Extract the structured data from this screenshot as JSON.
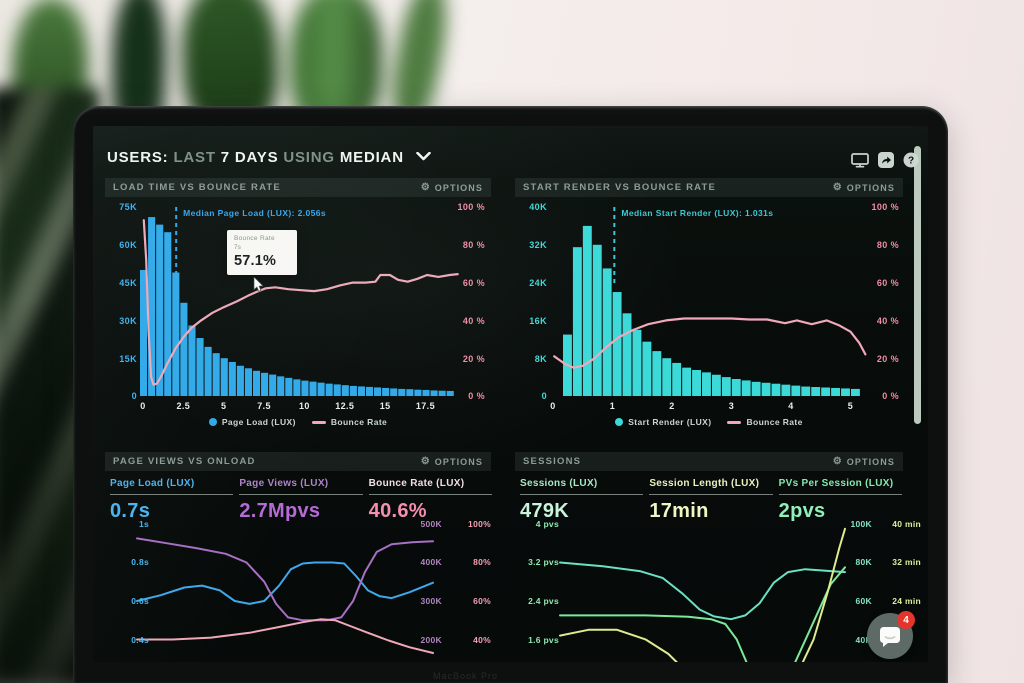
{
  "header": {
    "users": "USERS:",
    "last": "LAST",
    "days": "7 DAYS",
    "using": "USING",
    "median": "MEDIAN"
  },
  "misc": {
    "bezel_label": "MacBook Pro",
    "chat_badge": "4"
  },
  "panels": [
    {
      "title": "LOAD TIME VS BOUNCE RATE",
      "options_label": "OPTIONS",
      "median_label": "Median Page Load (LUX): 2.056s",
      "tooltip": {
        "title": "Bounce Rate",
        "subtitle": "7s",
        "value": "57.1%"
      },
      "legend": [
        {
          "label": "Page Load (LUX)",
          "marker": "dot",
          "color": "#2fa9ea"
        },
        {
          "label": "Bounce Rate",
          "marker": "line",
          "color": "#f0a8ba"
        }
      ],
      "axes": {
        "left": [
          "75K",
          "60K",
          "45K",
          "30K",
          "15K",
          "0"
        ],
        "right": [
          "100 %",
          "80 %",
          "60 %",
          "40 %",
          "20 %",
          "0 %"
        ],
        "x": [
          "0",
          "2.5",
          "5",
          "7.5",
          "10",
          "12.5",
          "15",
          "17.5"
        ]
      },
      "colors": {
        "bar": "#2fa9ea",
        "line": "#f0a8ba",
        "left_axis": "#3fb0ee",
        "right_axis": "#f08ca4",
        "x_axis": "#e8efec",
        "median": "#35a5ec"
      },
      "chart_data": {
        "type": "bar+line",
        "bar_series": "Page Load (LUX)",
        "bar_x_start_s": 0,
        "bar_x_step_s": 0.5,
        "bar_values_thousands": [
          50,
          71,
          68,
          65,
          49,
          37,
          28,
          23,
          19.5,
          17,
          15,
          13.5,
          12,
          11,
          10,
          9.2,
          8.5,
          7.8,
          7.2,
          6.6,
          6.1,
          5.7,
          5.3,
          4.9,
          4.6,
          4.3,
          4.0,
          3.8,
          3.6,
          3.4,
          3.2,
          3.0,
          2.8,
          2.7,
          2.5,
          2.4,
          2.2,
          2.1,
          2.0
        ],
        "line_series": "Bounce Rate",
        "line_points_s_pct": [
          [
            0.05,
            93
          ],
          [
            0.2,
            72
          ],
          [
            0.35,
            34
          ],
          [
            0.5,
            10
          ],
          [
            0.65,
            6
          ],
          [
            0.85,
            6.5
          ],
          [
            1.1,
            10
          ],
          [
            1.5,
            17
          ],
          [
            2.0,
            25
          ],
          [
            2.5,
            31
          ],
          [
            3.0,
            36
          ],
          [
            3.6,
            40
          ],
          [
            4.3,
            44
          ],
          [
            5.0,
            47
          ],
          [
            5.8,
            50
          ],
          [
            6.5,
            53
          ],
          [
            7.0,
            55
          ],
          [
            7.6,
            57
          ],
          [
            8.2,
            57.5
          ],
          [
            9.0,
            56.5
          ],
          [
            9.8,
            56
          ],
          [
            10.6,
            55.5
          ],
          [
            11.4,
            56.5
          ],
          [
            12.2,
            58.5
          ],
          [
            13.0,
            60
          ],
          [
            13.8,
            60
          ],
          [
            14.4,
            60.5
          ],
          [
            14.7,
            64
          ],
          [
            15.3,
            64
          ],
          [
            15.8,
            61.5
          ],
          [
            16.4,
            60.5
          ],
          [
            17.0,
            62
          ],
          [
            17.6,
            64
          ],
          [
            18.3,
            63
          ],
          [
            19.0,
            64
          ],
          [
            19.5,
            64.5
          ]
        ],
        "median_s": 2.056,
        "left_axis_max": 75000,
        "right_axis_max_pct": 100,
        "x_range_s": [
          0,
          19.8
        ]
      }
    },
    {
      "title": "START RENDER VS BOUNCE RATE",
      "options_label": "OPTIONS",
      "median_label": "Median Start Render (LUX): 1.031s",
      "legend": [
        {
          "label": "Start Render (LUX)",
          "marker": "dot",
          "color": "#3cd9d9"
        },
        {
          "label": "Bounce Rate",
          "marker": "line",
          "color": "#f0a8ba"
        }
      ],
      "axes": {
        "left": [
          "40K",
          "32K",
          "24K",
          "16K",
          "8K",
          "0"
        ],
        "right": [
          "100 %",
          "80 %",
          "60 %",
          "40 %",
          "20 %",
          "0 %"
        ],
        "x": [
          "0",
          "1",
          "2",
          "3",
          "4",
          "5"
        ]
      },
      "colors": {
        "bar": "#3cd9d9",
        "line": "#f0a8ba",
        "left_axis": "#44d6d6",
        "right_axis": "#f08ca4",
        "x_axis": "#e8efec",
        "median": "#3bc9d4"
      },
      "chart_data": {
        "type": "bar+line",
        "bar_series": "Start Render (LUX)",
        "bar_x_start_s": 0.17,
        "bar_x_step_s": 0.167,
        "bar_values_thousands": [
          13,
          31.5,
          36,
          32,
          27,
          22,
          17.5,
          14,
          11.5,
          9.5,
          8,
          7,
          6,
          5.5,
          5,
          4.5,
          4,
          3.6,
          3.3,
          3,
          2.8,
          2.6,
          2.4,
          2.2,
          2.0,
          1.9,
          1.8,
          1.7,
          1.6,
          1.5
        ],
        "line_series": "Bounce Rate",
        "line_points_s_pct": [
          [
            0.02,
            21
          ],
          [
            0.2,
            17
          ],
          [
            0.35,
            15
          ],
          [
            0.5,
            16
          ],
          [
            0.7,
            20
          ],
          [
            0.9,
            26
          ],
          [
            1.1,
            31
          ],
          [
            1.35,
            35
          ],
          [
            1.6,
            38
          ],
          [
            1.9,
            40
          ],
          [
            2.2,
            41
          ],
          [
            2.6,
            41
          ],
          [
            3.0,
            41
          ],
          [
            3.3,
            40.5
          ],
          [
            3.6,
            40.5
          ],
          [
            3.9,
            38.5
          ],
          [
            4.1,
            40
          ],
          [
            4.35,
            38
          ],
          [
            4.6,
            40
          ],
          [
            4.8,
            37.5
          ],
          [
            5.0,
            34
          ],
          [
            5.15,
            28
          ],
          [
            5.25,
            22
          ]
        ],
        "median_s": 1.031,
        "left_axis_max": 40000,
        "right_axis_max_pct": 100,
        "x_range_s": [
          0,
          5.3
        ]
      }
    },
    {
      "title": "PAGE VIEWS VS ONLOAD",
      "options_label": "OPTIONS",
      "metrics": [
        {
          "label": "Page Load (LUX)",
          "value": "0.7s",
          "label_color": "#49b4ee",
          "value_color": "#49b4ee"
        },
        {
          "label": "Page Views (LUX)",
          "value": "2.7Mpvs",
          "label_color": "#b083c8",
          "value_color": "#b46cd4"
        },
        {
          "label": "Bounce Rate (LUX)",
          "value": "40.6%",
          "label_color": "#f3dde6",
          "value_color": "#f48fae"
        }
      ],
      "rows": [
        {
          "left": "1s",
          "r1": "500K",
          "r2": "100%"
        },
        {
          "left": "0.8s",
          "r1": "400K",
          "r2": "80%"
        },
        {
          "left": "0.6s",
          "r1": "300K",
          "r2": "60%"
        },
        {
          "left": "0.4s",
          "r1": "200K",
          "r2": "40%"
        }
      ],
      "row_colors": {
        "left": "#49b4ee",
        "r1": "#b085c0",
        "r2": "#f2a0b4"
      },
      "chart_data": {
        "type": "line",
        "x_axis": "time (recent window, relative 0-1)",
        "left_axis": {
          "labels": [
            "1s",
            "0.8s",
            "0.6s",
            "0.4s"
          ],
          "unit": "seconds"
        },
        "right_axis": {
          "labels": [
            "500K 100%",
            "400K 80%",
            "300K 60%",
            "200K 40%"
          ]
        },
        "series": [
          {
            "name": "Page Load (LUX)",
            "color": "#3fa8ec",
            "scale": "seconds",
            "points": [
              [
                0,
                0.6
              ],
              [
                0.08,
                0.63
              ],
              [
                0.16,
                0.67
              ],
              [
                0.22,
                0.68
              ],
              [
                0.28,
                0.655
              ],
              [
                0.33,
                0.6
              ],
              [
                0.38,
                0.585
              ],
              [
                0.43,
                0.6
              ],
              [
                0.48,
                0.68
              ],
              [
                0.52,
                0.765
              ],
              [
                0.56,
                0.795
              ],
              [
                0.6,
                0.8
              ],
              [
                0.66,
                0.8
              ],
              [
                0.7,
                0.795
              ],
              [
                0.74,
                0.73
              ],
              [
                0.78,
                0.655
              ],
              [
                0.82,
                0.625
              ],
              [
                0.86,
                0.615
              ],
              [
                0.92,
                0.645
              ],
              [
                1,
                0.695
              ]
            ]
          },
          {
            "name": "Page Views (LUX)",
            "color": "#a86fc4",
            "scale": "seconds-equivalent",
            "points": [
              [
                0,
                0.925
              ],
              [
                0.1,
                0.9
              ],
              [
                0.2,
                0.875
              ],
              [
                0.3,
                0.845
              ],
              [
                0.37,
                0.8
              ],
              [
                0.43,
                0.7
              ],
              [
                0.47,
                0.585
              ],
              [
                0.51,
                0.515
              ],
              [
                0.56,
                0.5
              ],
              [
                0.64,
                0.5
              ],
              [
                0.69,
                0.515
              ],
              [
                0.73,
                0.6
              ],
              [
                0.77,
                0.75
              ],
              [
                0.81,
                0.855
              ],
              [
                0.86,
                0.895
              ],
              [
                0.93,
                0.905
              ],
              [
                1,
                0.91
              ]
            ]
          },
          {
            "name": "Bounce Rate (LUX)",
            "color": "#f0a8b8",
            "scale": "seconds-equivalent",
            "points": [
              [
                0,
                0.4
              ],
              [
                0.12,
                0.4
              ],
              [
                0.25,
                0.41
              ],
              [
                0.38,
                0.435
              ],
              [
                0.48,
                0.465
              ],
              [
                0.56,
                0.49
              ],
              [
                0.62,
                0.505
              ],
              [
                0.67,
                0.5
              ],
              [
                0.72,
                0.47
              ],
              [
                0.78,
                0.435
              ],
              [
                0.85,
                0.395
              ],
              [
                0.92,
                0.36
              ],
              [
                1,
                0.33
              ]
            ]
          }
        ]
      }
    },
    {
      "title": "SESSIONS",
      "options_label": "OPTIONS",
      "metrics": [
        {
          "label": "Sessions (LUX)",
          "value": "479K",
          "label_color": "#a9e9c5",
          "value_color": "#c8f4db"
        },
        {
          "label": "Session Length (LUX)",
          "value": "17min",
          "label_color": "#e9f3bd",
          "value_color": "#eef6c3"
        },
        {
          "label": "PVs Per Session (LUX)",
          "value": "2pvs",
          "label_color": "#85e8ae",
          "value_color": "#8ff0b8"
        }
      ],
      "rows": [
        {
          "left": "4 pvs",
          "r1": "100K",
          "r2": "40 min"
        },
        {
          "left": "3.2 pvs",
          "r1": "80K",
          "r2": "32 min"
        },
        {
          "left": "2.4 pvs",
          "r1": "60K",
          "r2": "24 min"
        },
        {
          "left": "1.6 pvs",
          "r1": "40K",
          "r2": ""
        }
      ],
      "row_colors": {
        "left": "#8fe9b2",
        "r1": "#86e2c2",
        "r2": "#dcee9c"
      },
      "chart_data": {
        "type": "line",
        "x_axis": "time (recent window, relative 0-1)",
        "left_axis": {
          "labels": [
            "4 pvs",
            "3.2 pvs",
            "2.4 pvs",
            "1.6 pvs"
          ],
          "unit": "pvs"
        },
        "right_axis": {
          "labels": [
            "100K 40 min",
            "80K 32 min",
            "60K 24 min",
            "40K"
          ]
        },
        "series": [
          {
            "name": "Sessions (LUX)",
            "color": "#6ce0c2",
            "scale": "pvs-equivalent",
            "points": [
              [
                0,
                3.2
              ],
              [
                0.15,
                3.12
              ],
              [
                0.28,
                3.02
              ],
              [
                0.36,
                2.88
              ],
              [
                0.43,
                2.55
              ],
              [
                0.49,
                2.22
              ],
              [
                0.54,
                2.08
              ],
              [
                0.6,
                2.02
              ],
              [
                0.65,
                2.1
              ],
              [
                0.7,
                2.35
              ],
              [
                0.75,
                2.78
              ],
              [
                0.8,
                3.0
              ],
              [
                0.86,
                3.06
              ],
              [
                1,
                3.0
              ]
            ]
          },
          {
            "name": "PVs Per Session (LUX)",
            "color": "#7ce89a",
            "scale": "pvs",
            "points": [
              [
                0,
                2.1
              ],
              [
                0.3,
                2.1
              ],
              [
                0.45,
                2.07
              ],
              [
                0.53,
                2.02
              ],
              [
                0.58,
                1.92
              ],
              [
                0.62,
                1.6
              ],
              [
                0.66,
                1.05
              ],
              [
                0.7,
                0.55
              ],
              [
                0.75,
                0.45
              ],
              [
                0.8,
                0.8
              ],
              [
                0.85,
                1.45
              ],
              [
                0.9,
                2.1
              ],
              [
                0.95,
                2.75
              ],
              [
                1,
                3.1
              ]
            ]
          },
          {
            "name": "Session Length (LUX)",
            "color": "#dcec8e",
            "scale": "pvs-equivalent",
            "points": [
              [
                0,
                1.68
              ],
              [
                0.1,
                1.8
              ],
              [
                0.2,
                1.8
              ],
              [
                0.3,
                1.6
              ],
              [
                0.38,
                1.3
              ],
              [
                0.44,
                0.95
              ],
              [
                0.5,
                0.55
              ],
              [
                0.56,
                0.3
              ],
              [
                0.68,
                0.15
              ],
              [
                0.76,
                0.35
              ],
              [
                0.83,
                0.85
              ],
              [
                0.89,
                1.6
              ],
              [
                0.94,
                2.6
              ],
              [
                0.98,
                3.5
              ],
              [
                1,
                3.9
              ]
            ]
          }
        ]
      }
    }
  ]
}
